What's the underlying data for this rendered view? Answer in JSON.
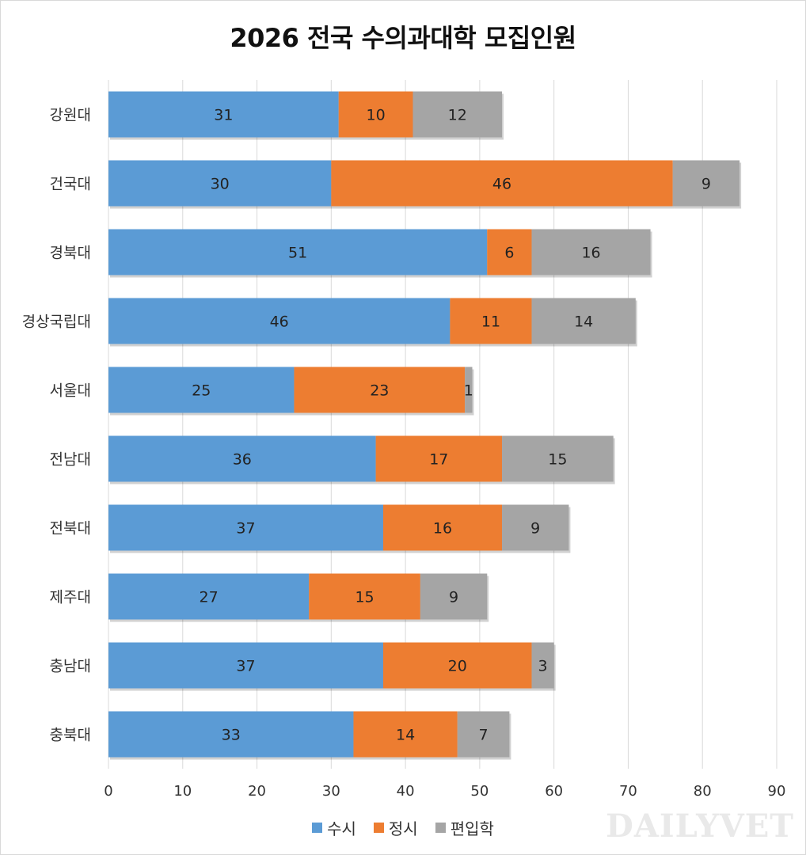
{
  "chart_data": {
    "type": "bar",
    "orientation": "horizontal",
    "stacked": true,
    "title": "2026 전국 수의과대학 모집인원",
    "categories": [
      "강원대",
      "건국대",
      "경북대",
      "경상국립대",
      "서울대",
      "전남대",
      "전북대",
      "제주대",
      "충남대",
      "충북대"
    ],
    "series": [
      {
        "name": "수시",
        "color": "#5b9bd5",
        "values": [
          31,
          30,
          51,
          46,
          25,
          36,
          37,
          27,
          37,
          33
        ]
      },
      {
        "name": "정시",
        "color": "#ed7d31",
        "values": [
          10,
          46,
          6,
          11,
          23,
          17,
          16,
          15,
          20,
          14
        ]
      },
      {
        "name": "편입학",
        "color": "#a5a5a5",
        "values": [
          12,
          9,
          16,
          14,
          1,
          15,
          9,
          9,
          3,
          7
        ]
      }
    ],
    "xlim": [
      0,
      90
    ],
    "xticks": [
      0,
      10,
      20,
      30,
      40,
      50,
      60,
      70,
      80,
      90
    ],
    "xlabel": "",
    "ylabel": "",
    "grid": true,
    "legend_position": "bottom",
    "data_labels": true
  },
  "watermark": "DAILYVET"
}
